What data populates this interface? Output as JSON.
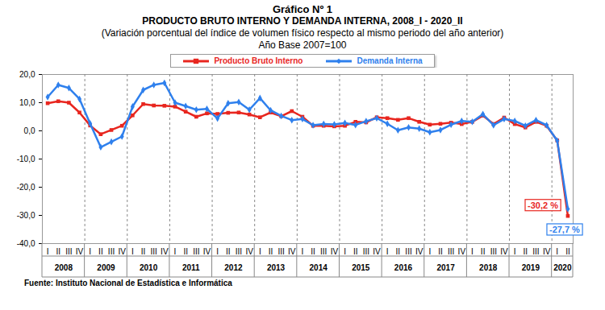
{
  "chart_data": {
    "type": "line",
    "title": "Gráfico Nº 1",
    "subtitle": [
      "PRODUCTO BRUTO INTERNO Y DEMANDA INTERNA, 2008_I - 2020_II",
      "(Variación porcentual del índice de volumen físico respecto al mismo periodo del año anterior)",
      "Año Base 2007=100"
    ],
    "source": "Fuente: Instituto Nacional de Estadística e Informática",
    "categories": [
      "I",
      "II",
      "III",
      "IV",
      "I",
      "II",
      "III",
      "IV",
      "I",
      "II",
      "III",
      "IV",
      "I",
      "II",
      "III",
      "IV",
      "I",
      "II",
      "III",
      "IV",
      "I",
      "II",
      "III",
      "IV",
      "I",
      "II",
      "III",
      "IV",
      "I",
      "II",
      "III",
      "IV",
      "I",
      "II",
      "III",
      "IV",
      "I",
      "II",
      "III",
      "IV",
      "I",
      "II",
      "III",
      "IV",
      "I",
      "II",
      "III",
      "IV",
      "I",
      "II"
    ],
    "years": [
      "2008",
      "2009",
      "2010",
      "2011",
      "2012",
      "2013",
      "2014",
      "2015",
      "2016",
      "2017",
      "2018",
      "2019",
      "2020"
    ],
    "ylim": [
      -40,
      20
    ],
    "yticks": [
      {
        "value": -40,
        "label": "-40,0"
      },
      {
        "value": -30,
        "label": "-30,0"
      },
      {
        "value": -20,
        "label": "-20,0"
      },
      {
        "value": -10,
        "label": "-10,0"
      },
      {
        "value": 0,
        "label": "0,0"
      },
      {
        "value": 10,
        "label": "10,0"
      },
      {
        "value": 20,
        "label": "20,0"
      }
    ],
    "legend": "top",
    "series": [
      {
        "name": "Producto Bruto Interno",
        "color": "#e8261f",
        "marker": "square",
        "values": [
          9.8,
          10.5,
          10.0,
          6.5,
          1.9,
          -1.2,
          0.3,
          1.8,
          5.5,
          9.5,
          9.0,
          8.9,
          8.6,
          6.8,
          5.0,
          6.2,
          6.0,
          6.4,
          6.5,
          5.8,
          4.8,
          6.5,
          5.2,
          7.0,
          5.0,
          1.8,
          1.8,
          1.6,
          1.8,
          3.2,
          3.0,
          4.8,
          4.5,
          3.9,
          4.5,
          3.2,
          2.2,
          2.5,
          2.9,
          2.4,
          3.2,
          5.4,
          2.4,
          4.7,
          2.4,
          1.2,
          3.2,
          1.8,
          -3.4,
          -30.2
        ]
      },
      {
        "name": "Demanda Interna",
        "color": "#2f80ed",
        "marker": "diamond",
        "values": [
          12.0,
          16.3,
          15.2,
          11.3,
          2.6,
          -5.8,
          -3.9,
          -2.0,
          8.6,
          14.5,
          16.3,
          17.0,
          10.0,
          8.8,
          7.5,
          7.8,
          4.4,
          9.8,
          10.2,
          7.5,
          11.6,
          7.3,
          5.3,
          3.8,
          4.2,
          2.0,
          2.4,
          2.3,
          2.8,
          2.1,
          3.4,
          4.5,
          2.5,
          0.2,
          1.2,
          0.8,
          -0.5,
          0.3,
          2.2,
          3.5,
          3.2,
          5.9,
          2.0,
          4.2,
          3.5,
          1.8,
          3.8,
          2.0,
          -3.5,
          -27.7
        ]
      }
    ],
    "annotations": [
      {
        "text": "-30,2 %",
        "series": "Producto Bruto Interno"
      },
      {
        "text": "-27,7 %",
        "series": "Demanda Interna"
      }
    ]
  }
}
